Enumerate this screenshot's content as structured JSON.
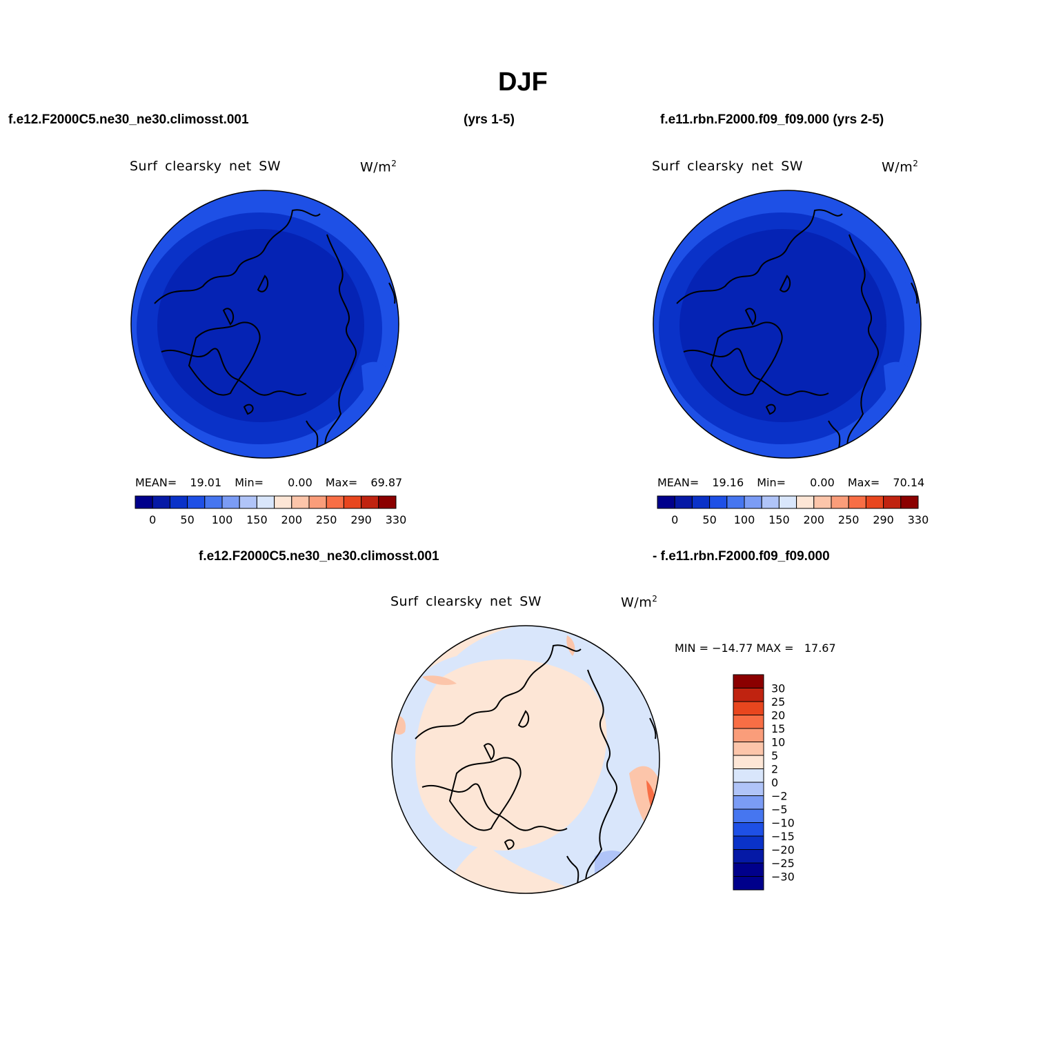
{
  "title": "DJF",
  "header": {
    "case1": "f.e12.F2000C5.ne30_ne30.climosst.001",
    "case1_years": "(yrs 1-5)",
    "case2": "f.e11.rbn.F2000.f09_f09.000 (yrs 2-5)"
  },
  "diff_header": {
    "case1": "f.e12.F2000C5.ne30_ne30.climosst.001",
    "case2": "- f.e11.rbn.F2000.f09_f09.000"
  },
  "panels": [
    {
      "variable": "Surf clearsky net SW",
      "units": "W/m",
      "units_sup": "2",
      "stats": {
        "mean_label": "MEAN=",
        "mean": "19.01",
        "min_label": "Min=",
        "min": "0.00",
        "max_label": "Max=",
        "max": "69.87"
      }
    },
    {
      "variable": "Surf clearsky net SW",
      "units": "W/m",
      "units_sup": "2",
      "stats": {
        "mean_label": "MEAN=",
        "mean": "19.16",
        "min_label": "Min=",
        "min": "0.00",
        "max_label": "Max=",
        "max": "70.14"
      }
    }
  ],
  "diff_panel": {
    "variable": "Surf clearsky net SW",
    "units": "W/m",
    "units_sup": "2",
    "minmax": "MIN = −14.77 MAX =   17.67"
  },
  "colorbar_main": {
    "colors": [
      "#00008b",
      "#0519a6",
      "#0a32c8",
      "#1e50e6",
      "#4676f0",
      "#7b9cf5",
      "#b0c4f8",
      "#d9e6fb",
      "#fde6d6",
      "#fcc5aa",
      "#fa9d7a",
      "#f86e45",
      "#e8461e",
      "#c02310",
      "#8b0000"
    ],
    "tick_labels": [
      "0",
      "50",
      "100",
      "150",
      "200",
      "250",
      "290",
      "330"
    ]
  },
  "colorbar_diff": {
    "colors": [
      "#00008b",
      "#0519a6",
      "#0a32c8",
      "#1e50e6",
      "#4676f0",
      "#7b9cf5",
      "#b0c4f8",
      "#d9e6fb",
      "#fde6d6",
      "#fcc5aa",
      "#fa9d7a",
      "#f86e45",
      "#e8461e",
      "#c02310",
      "#8b0000"
    ],
    "tick_labels": [
      "−30",
      "−25",
      "−20",
      "−15",
      "−10",
      "−5",
      "−2",
      "0",
      "2",
      "5",
      "10",
      "15",
      "20",
      "25",
      "30"
    ]
  },
  "map_colors": {
    "dark": "#0523b4",
    "mid": "#0a32c8",
    "outer": "#1e50e6",
    "diff_base": "#fde6d6",
    "diff_cool": "#d9e6fb",
    "diff_cool2": "#b0c4f8",
    "diff_warm": "#fcc5aa",
    "diff_warm2": "#f86e45"
  }
}
